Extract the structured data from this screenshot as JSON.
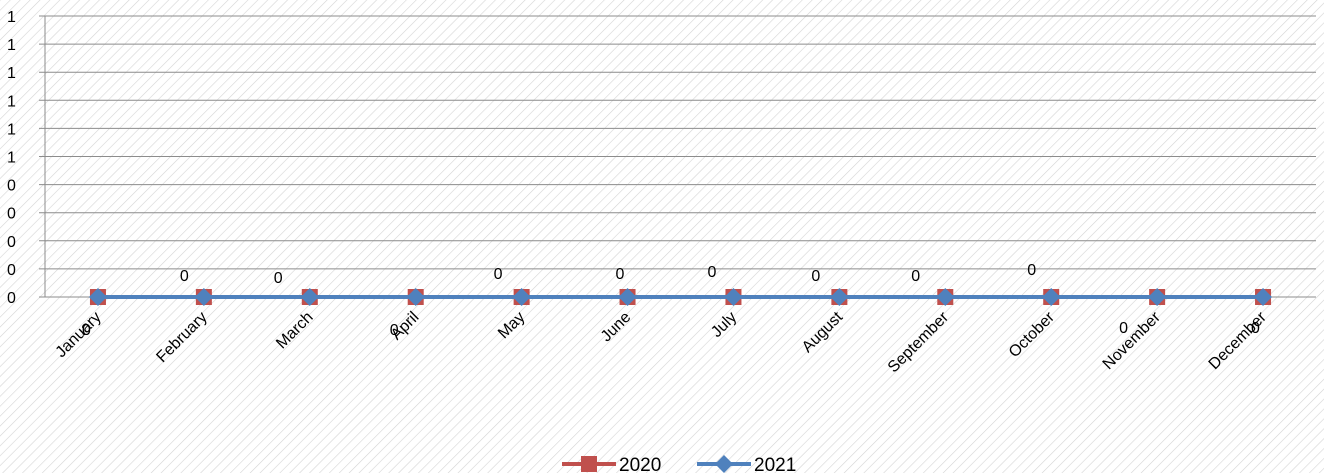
{
  "chart_data": {
    "type": "line",
    "categories": [
      "January",
      "February",
      "March",
      "April",
      "May",
      "June",
      "July",
      "August",
      "September",
      "October",
      "November",
      "December"
    ],
    "y_ticks": [
      "0",
      "0",
      "0",
      "0",
      "0",
      "1",
      "1",
      "1",
      "1",
      "1",
      "1"
    ],
    "ylim": [
      0,
      1
    ],
    "grid": true,
    "legend_position": "bottom",
    "series": [
      {
        "name": "2020",
        "values": [
          0,
          0,
          0,
          0,
          0,
          0,
          0,
          0,
          0,
          0,
          0,
          0
        ],
        "color": "#c0504d",
        "marker": "square"
      },
      {
        "name": "2021",
        "values": [
          0,
          0,
          0,
          0,
          0,
          0,
          0,
          0,
          0,
          0,
          0,
          0
        ],
        "color": "#4f81bd",
        "marker": "diamond"
      }
    ],
    "data_labels": [
      "0",
      "0",
      "0",
      "0",
      "0",
      "0",
      "0",
      "0",
      "0",
      "0",
      "0",
      "0"
    ]
  }
}
